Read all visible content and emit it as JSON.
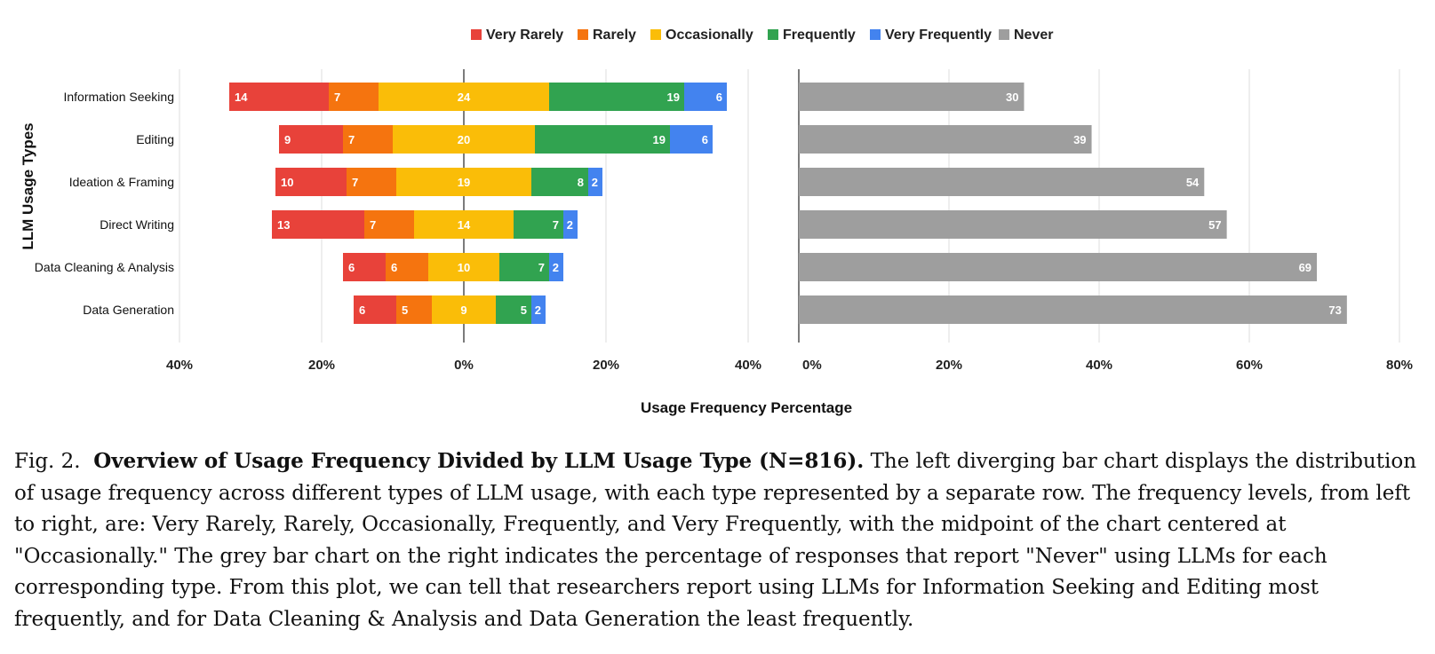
{
  "chart_data": [
    {
      "type": "bar",
      "subtype": "diverging-stacked-horizontal",
      "categories": [
        "Information Seeking",
        "Editing",
        "Ideation & Framing",
        "Direct Writing",
        "Data Cleaning & Analysis",
        "Data Generation"
      ],
      "series": [
        {
          "name": "Very Rarely",
          "color": "#E8423A",
          "values": [
            14,
            9,
            10,
            13,
            6,
            6
          ]
        },
        {
          "name": "Rarely",
          "color": "#F5740F",
          "values": [
            7,
            7,
            7,
            7,
            6,
            5
          ]
        },
        {
          "name": "Occasionally",
          "color": "#FABD08",
          "values": [
            24,
            20,
            19,
            14,
            10,
            9
          ]
        },
        {
          "name": "Frequently",
          "color": "#31A350",
          "values": [
            19,
            19,
            8,
            7,
            7,
            5
          ]
        },
        {
          "name": "Very Frequently",
          "color": "#4383EF",
          "values": [
            6,
            6,
            2,
            2,
            2,
            2
          ]
        }
      ],
      "center": "Occasionally",
      "ylabel": "LLM Usage Types",
      "xlim": [
        -40,
        40
      ],
      "xticks": [
        "40%",
        "20%",
        "0%",
        "20%",
        "40%"
      ],
      "grid": true
    },
    {
      "type": "bar",
      "subtype": "horizontal",
      "categories": [
        "Information Seeking",
        "Editing",
        "Ideation & Framing",
        "Direct Writing",
        "Data Cleaning & Analysis",
        "Data Generation"
      ],
      "series": [
        {
          "name": "Never",
          "color": "#9E9E9E",
          "values": [
            30,
            39,
            54,
            57,
            69,
            73
          ]
        }
      ],
      "xlim": [
        0,
        80
      ],
      "xticks": [
        "0%",
        "20%",
        "40%",
        "60%",
        "80%"
      ],
      "grid": true
    }
  ],
  "legend": [
    {
      "label": "Very Rarely",
      "color": "#E8423A"
    },
    {
      "label": "Rarely",
      "color": "#F5740F"
    },
    {
      "label": "Occasionally",
      "color": "#FABD08"
    },
    {
      "label": "Frequently",
      "color": "#31A350"
    },
    {
      "label": "Very Frequently",
      "color": "#4383EF"
    },
    {
      "label": "Never",
      "color": "#9E9E9E"
    }
  ],
  "shared_xlabel": "Usage Frequency Percentage",
  "caption": {
    "prefix": "Fig. 2.",
    "title": "Overview of Usage Frequency Divided by LLM Usage Type (N=816).",
    "body": "The left diverging bar chart displays the distribution of usage frequency across different types of LLM usage, with each type represented by a separate row. The frequency levels, from left to right, are: Very Rarely, Rarely, Occasionally, Frequently, and Very Frequently, with the midpoint of the chart centered at \"Occasionally.\" The grey bar chart on the right indicates the percentage of responses that report \"Never\" using LLMs for each corresponding type. From this plot, we can tell that researchers report using LLMs for Information Seeking and Editing most frequently, and for Data Cleaning & Analysis and Data Generation the least frequently."
  }
}
